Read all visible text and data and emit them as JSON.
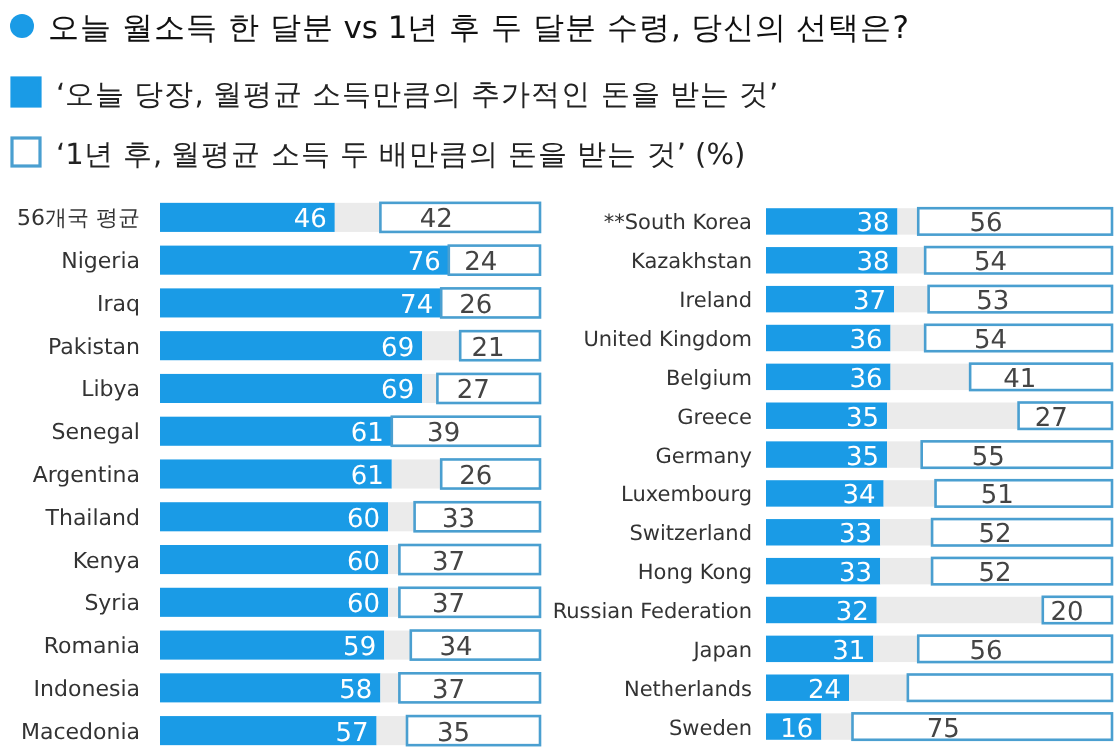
{
  "chart_data": [
    {
      "type": "bar",
      "orientation": "horizontal",
      "stacked": true,
      "legend": "top",
      "title": "오늘 월소득 한 달분 vs 1년 후 두 달분 수령, 당신의 선택은?",
      "categories": [
        "56개국 평균",
        "Nigeria",
        "Iraq",
        "Pakistan",
        "Libya",
        "Senegal",
        "Argentina",
        "Thailand",
        "Kenya",
        "Syria",
        "Romania",
        "Indonesia",
        "Macedonia"
      ],
      "series": [
        {
          "name": "‘오늘 당장, 월평균 소득만큼의 추가적인 돈을 받는 것’",
          "color": "#1a9be6",
          "values": [
            46,
            76,
            74,
            69,
            69,
            61,
            61,
            60,
            60,
            60,
            59,
            58,
            57
          ],
          "value_labels": [
            "46",
            "76",
            "74",
            "69",
            "69",
            "61",
            "61",
            "60",
            "60",
            "60",
            "59",
            "58",
            "57"
          ]
        },
        {
          "color": "#ebebeb",
          "values": [
            12,
            0,
            0,
            10,
            4,
            0,
            13,
            7,
            3,
            3,
            7,
            5,
            8
          ]
        },
        {
          "name": "‘1년 후, 월평균 소득 두 배만큼의 돈을 받는 것’ (%)",
          "color": "#ffffff",
          "values": [
            42,
            24,
            26,
            21,
            27,
            39,
            26,
            33,
            37,
            37,
            34,
            37,
            35
          ],
          "value_labels": [
            "42",
            "24",
            "26",
            "21",
            "27",
            "39",
            "26",
            "33",
            "37",
            "37",
            "34",
            "37",
            "35"
          ]
        }
      ]
    },
    {
      "type": "bar",
      "orientation": "horizontal",
      "stacked": true,
      "categories": [
        "**South Korea",
        "Kazakhstan",
        "Ireland",
        "United Kingdom",
        "Belgium",
        "Greece",
        "Germany",
        "Luxembourg",
        "Switzerland",
        "Hong Kong",
        "Russian Federation",
        "Japan",
        "Netherlands",
        "Sweden"
      ],
      "series": [
        {
          "color": "#1a9be6",
          "values": [
            38,
            38,
            37,
            36,
            36,
            35,
            35,
            34,
            33,
            33,
            32,
            31,
            24,
            16
          ],
          "value_labels": [
            "38",
            "38",
            "37",
            "36",
            "36",
            "35",
            "35",
            "34",
            "33",
            "33",
            "32",
            "31",
            "24",
            "16"
          ]
        },
        {
          "color": "#ebebeb",
          "values": [
            6,
            8,
            10,
            10,
            23,
            38,
            10,
            15,
            15,
            15,
            48,
            13,
            17,
            9
          ]
        },
        {
          "color": "#ffffff",
          "values": [
            56,
            54,
            53,
            54,
            41,
            27,
            55,
            51,
            52,
            52,
            20,
            56,
            59,
            75
          ],
          "value_labels": [
            "56",
            "54",
            "53",
            "54",
            "41",
            "27",
            "55",
            "51",
            "52",
            "52",
            "20",
            "56",
            null,
            "75"
          ]
        }
      ]
    }
  ]
}
